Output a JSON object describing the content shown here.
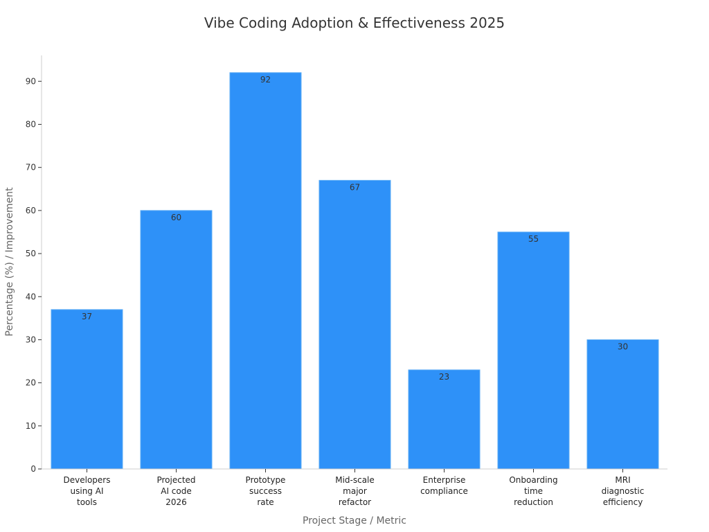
{
  "chart_data": {
    "type": "bar",
    "title": "Vibe Coding Adoption & Effectiveness 2025",
    "xlabel": "Project Stage / Metric",
    "ylabel": "Percentage (%) / Improvement",
    "categories": [
      [
        "Developers",
        "using AI",
        "tools"
      ],
      [
        "Projected",
        "AI code",
        "2026"
      ],
      [
        "Prototype",
        "success",
        "rate"
      ],
      [
        "Mid-scale",
        "major",
        "refactor"
      ],
      [
        "Enterprise",
        "compliance"
      ],
      [
        "Onboarding",
        "time",
        "reduction"
      ],
      [
        "MRI",
        "diagnostic",
        "efficiency"
      ]
    ],
    "values": [
      37,
      60,
      92,
      67,
      23,
      55,
      30
    ],
    "ylim": [
      0,
      96
    ],
    "yticks": [
      0,
      10,
      20,
      30,
      40,
      50,
      60,
      70,
      80,
      90
    ],
    "grid": false,
    "legend": "none",
    "bar_color": "#2e91f8",
    "bar_edge_color": "#5aabf5"
  }
}
